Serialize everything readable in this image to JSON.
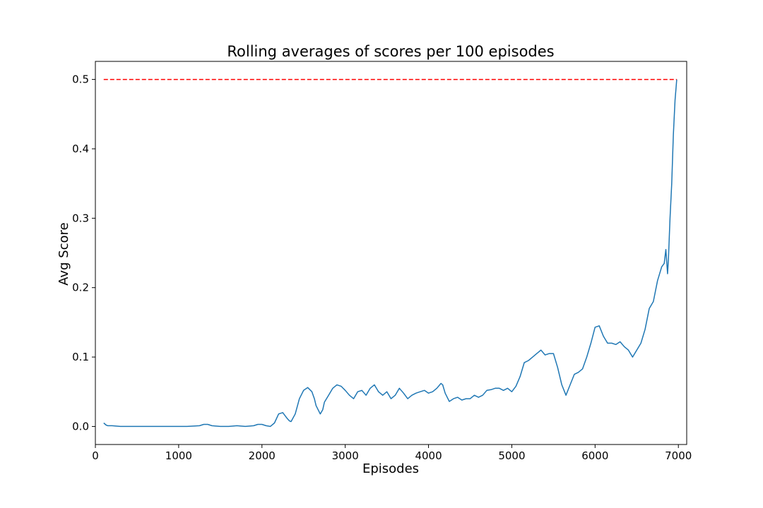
{
  "chart_data": {
    "type": "line",
    "title": "Rolling averages of scores per 100 episodes",
    "xlabel": "Episodes",
    "ylabel": "Avg Score",
    "xlim": [
      0,
      7100
    ],
    "ylim": [
      -0.026,
      0.526
    ],
    "xticks": [
      0,
      1000,
      2000,
      3000,
      4000,
      5000,
      6000,
      7000
    ],
    "yticks": [
      0.0,
      0.1,
      0.2,
      0.3,
      0.4,
      0.5
    ],
    "xtick_labels": [
      "0",
      "1000",
      "2000",
      "3000",
      "4000",
      "5000",
      "6000",
      "7000"
    ],
    "ytick_labels": [
      "0.0",
      "0.1",
      "0.2",
      "0.3",
      "0.4",
      "0.5"
    ],
    "grid": false,
    "legend": "none",
    "series": [
      {
        "color": "#1f77b4",
        "x": [
          100,
          130,
          150,
          200,
          300,
          500,
          800,
          1100,
          1250,
          1300,
          1350,
          1400,
          1500,
          1600,
          1700,
          1800,
          1900,
          1950,
          2000,
          2050,
          2100,
          2150,
          2200,
          2250,
          2300,
          2330,
          2350,
          2400,
          2450,
          2500,
          2550,
          2600,
          2630,
          2650,
          2700,
          2730,
          2750,
          2800,
          2850,
          2900,
          2950,
          3000,
          3050,
          3100,
          3150,
          3200,
          3250,
          3300,
          3350,
          3400,
          3450,
          3500,
          3550,
          3600,
          3650,
          3700,
          3750,
          3800,
          3850,
          3900,
          3950,
          4000,
          4050,
          4100,
          4150,
          4170,
          4200,
          4250,
          4300,
          4350,
          4400,
          4450,
          4500,
          4550,
          4600,
          4650,
          4700,
          4750,
          4800,
          4850,
          4900,
          4950,
          5000,
          5050,
          5100,
          5150,
          5200,
          5250,
          5300,
          5350,
          5400,
          5450,
          5500,
          5550,
          5600,
          5650,
          5700,
          5750,
          5800,
          5850,
          5900,
          5950,
          6000,
          6050,
          6100,
          6150,
          6200,
          6250,
          6300,
          6350,
          6400,
          6450,
          6500,
          6550,
          6600,
          6650,
          6700,
          6750,
          6800,
          6830,
          6850,
          6870,
          6880,
          6900,
          6920,
          6940,
          6960,
          6980
        ],
        "values": [
          0.005,
          0.002,
          0.001,
          0.001,
          0.0,
          0.0,
          0.0,
          0.0,
          0.001,
          0.003,
          0.003,
          0.001,
          0.0,
          0.0,
          0.001,
          0.0,
          0.001,
          0.003,
          0.003,
          0.001,
          0.0,
          0.005,
          0.018,
          0.02,
          0.012,
          0.008,
          0.007,
          0.018,
          0.04,
          0.052,
          0.056,
          0.05,
          0.04,
          0.03,
          0.018,
          0.024,
          0.035,
          0.045,
          0.055,
          0.06,
          0.058,
          0.052,
          0.045,
          0.04,
          0.05,
          0.052,
          0.045,
          0.055,
          0.06,
          0.05,
          0.045,
          0.05,
          0.04,
          0.045,
          0.055,
          0.048,
          0.04,
          0.045,
          0.048,
          0.05,
          0.052,
          0.048,
          0.05,
          0.055,
          0.062,
          0.06,
          0.048,
          0.036,
          0.04,
          0.042,
          0.038,
          0.04,
          0.04,
          0.045,
          0.042,
          0.045,
          0.052,
          0.053,
          0.055,
          0.055,
          0.052,
          0.055,
          0.05,
          0.058,
          0.072,
          0.092,
          0.095,
          0.1,
          0.105,
          0.11,
          0.103,
          0.105,
          0.105,
          0.085,
          0.06,
          0.045,
          0.06,
          0.075,
          0.078,
          0.083,
          0.1,
          0.12,
          0.143,
          0.145,
          0.13,
          0.12,
          0.12,
          0.118,
          0.122,
          0.115,
          0.11,
          0.1,
          0.11,
          0.12,
          0.14,
          0.17,
          0.18,
          0.21,
          0.23,
          0.235,
          0.255,
          0.22,
          0.24,
          0.3,
          0.35,
          0.42,
          0.47,
          0.5
        ]
      }
    ],
    "reference_line": {
      "y": 0.5,
      "color": "#ff0000",
      "style": "dashed"
    }
  }
}
